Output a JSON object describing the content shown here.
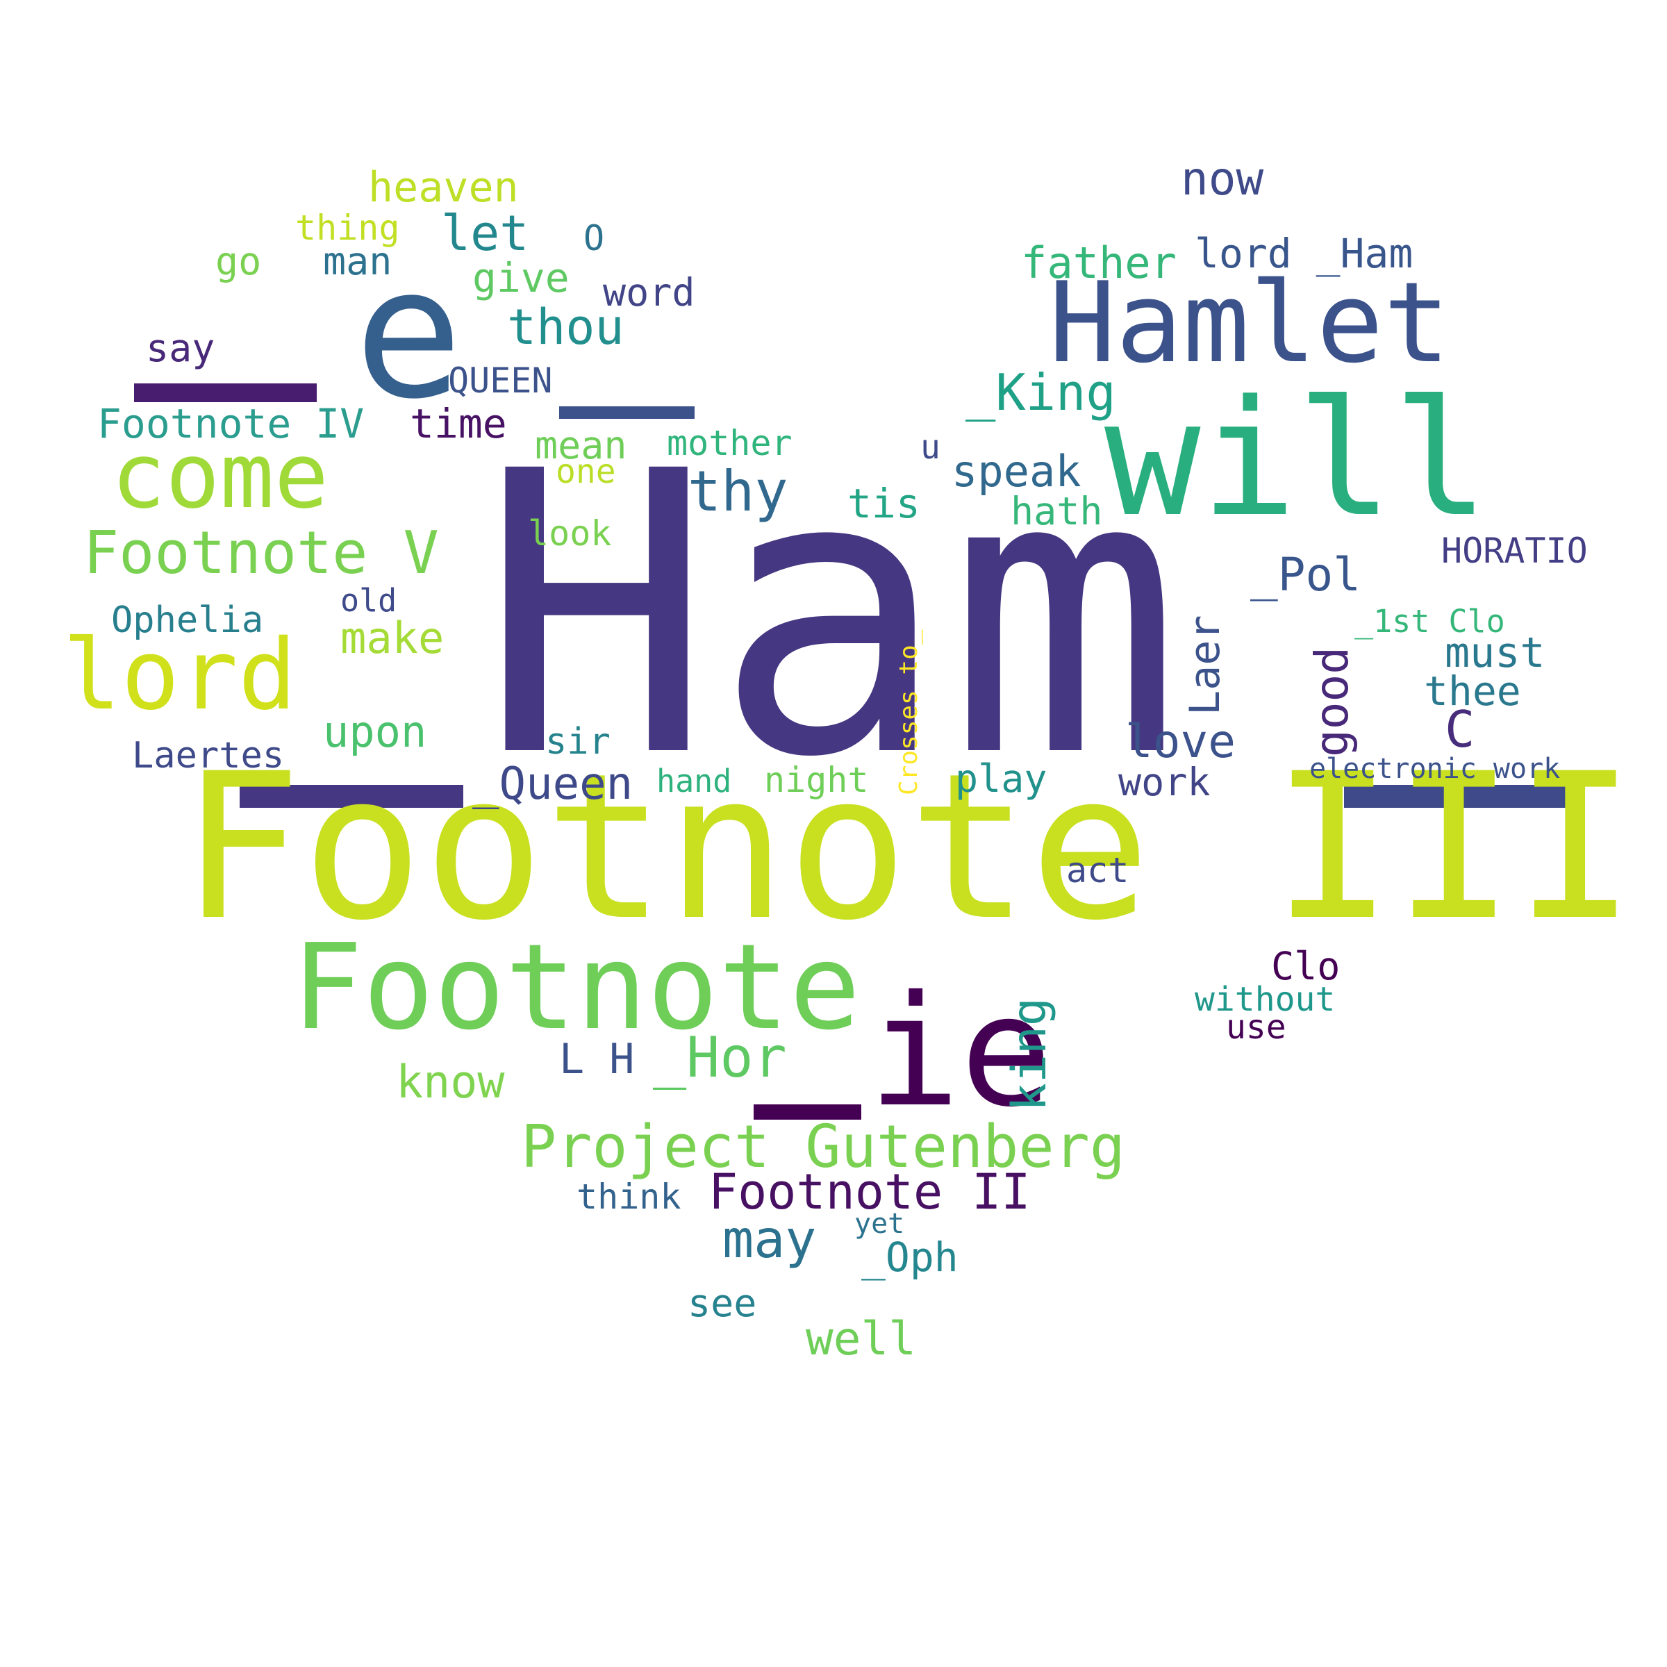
{
  "words": [
    {
      "text": "Ham",
      "color": "#453781"
    },
    {
      "text": "Footnote III",
      "color": "#c8e020"
    },
    {
      "text": "will",
      "color": "#29af7f"
    },
    {
      "text": "Hamlet",
      "color": "#3b528b"
    },
    {
      "text": "ie",
      "color": "#440154"
    },
    {
      "text": "e",
      "color": "#355f8d"
    },
    {
      "text": "Footnote",
      "color": "#6ece58"
    },
    {
      "text": "come",
      "color": "#a0da39"
    },
    {
      "text": "lord",
      "color": "#d0e11c"
    },
    {
      "text": "Project Gutenberg",
      "color": "#7ad151"
    },
    {
      "text": "Footnote V",
      "color": "#7ad151"
    },
    {
      "text": "Footnote II",
      "color": "#471063"
    },
    {
      "text": "thy",
      "color": "#31688e"
    },
    {
      "text": "_Hor",
      "color": "#5ec962"
    },
    {
      "text": "_King",
      "color": "#1fa187"
    },
    {
      "text": "thou",
      "color": "#218f8d"
    },
    {
      "text": "know",
      "color": "#7fd34e"
    },
    {
      "text": "may",
      "color": "#2c728e"
    },
    {
      "text": "king",
      "color": "#1f988b"
    },
    {
      "text": "now",
      "color": "#3e4a89"
    },
    {
      "text": "good",
      "color": "#482878"
    },
    {
      "text": "love",
      "color": "#3b528b"
    },
    {
      "text": "well",
      "color": "#6ece58"
    },
    {
      "text": "_Queen",
      "color": "#3e4989"
    },
    {
      "text": "_Pol",
      "color": "#39568c"
    },
    {
      "text": "father",
      "color": "#35b779"
    },
    {
      "text": "speak",
      "color": "#31688e"
    },
    {
      "text": "Laer",
      "color": "#3b528b"
    },
    {
      "text": "let",
      "color": "#23888e"
    },
    {
      "text": "lord _Ham",
      "color": "#39568c"
    },
    {
      "text": "upon",
      "color": "#4ac16d"
    },
    {
      "text": "make",
      "color": "#a5db36"
    },
    {
      "text": "heaven",
      "color": "#bddf26"
    },
    {
      "text": "must",
      "color": "#2a788e"
    },
    {
      "text": "thee",
      "color": "#2a788e"
    },
    {
      "text": "tis",
      "color": "#21a585"
    },
    {
      "text": "Footnote IV",
      "color": "#2a9d8f"
    },
    {
      "text": "time",
      "color": "#471164"
    },
    {
      "text": "give",
      "color": "#5ec962"
    },
    {
      "text": "_Oph",
      "color": "#24868e"
    },
    {
      "text": "man",
      "color": "#2c718e"
    },
    {
      "text": "go",
      "color": "#7ad151"
    },
    {
      "text": "hath",
      "color": "#35b779"
    },
    {
      "text": "mean",
      "color": "#6ece58"
    },
    {
      "text": "word",
      "color": "#414487"
    },
    {
      "text": "mother",
      "color": "#2fb47c"
    },
    {
      "text": "say",
      "color": "#482878"
    },
    {
      "text": "L H",
      "color": "#3b528b"
    },
    {
      "text": "see",
      "color": "#26828e"
    },
    {
      "text": "Ophelia",
      "color": "#277f8e"
    },
    {
      "text": "play",
      "color": "#21918c"
    },
    {
      "text": "work",
      "color": "#414487"
    },
    {
      "text": "night",
      "color": "#6ece58"
    },
    {
      "text": "HORATIO",
      "color": "#433e85"
    },
    {
      "text": "Clo",
      "color": "#440154"
    },
    {
      "text": "sir",
      "color": "#25838e"
    },
    {
      "text": "think",
      "color": "#33638d"
    },
    {
      "text": "look",
      "color": "#7ad151"
    },
    {
      "text": "Laertes",
      "color": "#3e4a89"
    },
    {
      "text": "C",
      "color": "#472d7b"
    },
    {
      "text": "QUEEN",
      "color": "#3b528b"
    },
    {
      "text": "without",
      "color": "#1f988b"
    },
    {
      "text": "act",
      "color": "#3e4a89"
    },
    {
      "text": "one",
      "color": "#bade28"
    },
    {
      "text": "thing",
      "color": "#c2df23"
    },
    {
      "text": "hand",
      "color": "#2db27d"
    },
    {
      "text": "_1st Clo",
      "color": "#35b779"
    },
    {
      "text": "use",
      "color": "#440154"
    },
    {
      "text": "O",
      "color": "#2c728e"
    },
    {
      "text": "electronic work",
      "color": "#3b528b"
    },
    {
      "text": "yet",
      "color": "#2c728e"
    },
    {
      "text": "old",
      "color": "#3e4a89"
    },
    {
      "text": "u",
      "color": "#3e4a89"
    },
    {
      "text": "Crosses to_",
      "color": "#fde725"
    }
  ],
  "bars": [
    {
      "color": "#481c6e"
    },
    {
      "color": "#3b528b"
    },
    {
      "color": "#453781"
    },
    {
      "color": "#440154"
    },
    {
      "color": "#3e4a89"
    }
  ]
}
